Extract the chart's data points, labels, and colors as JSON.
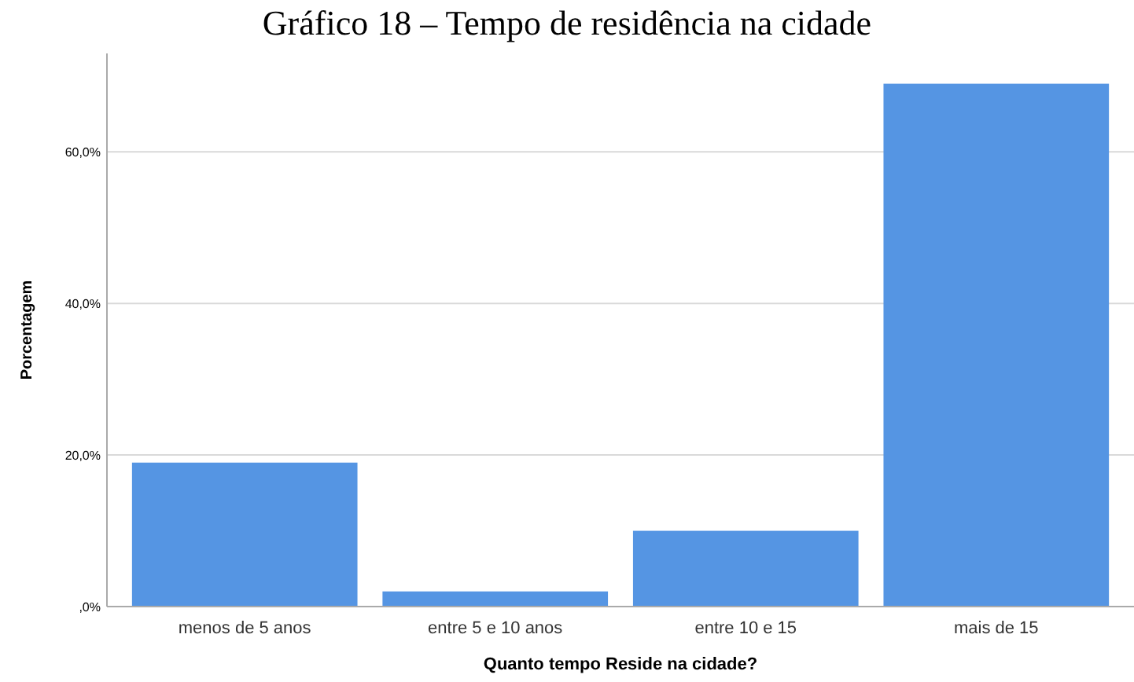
{
  "chart_data": {
    "type": "bar",
    "title": "Gráfico 18 – Tempo de residência na cidade",
    "xlabel": "Quanto tempo Reside na cidade?",
    "ylabel": "Porcentagem",
    "categories": [
      "menos de 5 anos",
      "entre 5 e 10 anos",
      "entre 10 e 15",
      "mais de 15"
    ],
    "values": [
      19,
      2,
      10,
      69
    ],
    "color": "#5595e3",
    "ylim": [
      0,
      73
    ],
    "yticks": [
      {
        "value": 0,
        "label": ",0%"
      },
      {
        "value": 20,
        "label": "20,0%"
      },
      {
        "value": 40,
        "label": "40,0%"
      },
      {
        "value": 60,
        "label": "60,0%"
      }
    ],
    "grid": "y"
  }
}
